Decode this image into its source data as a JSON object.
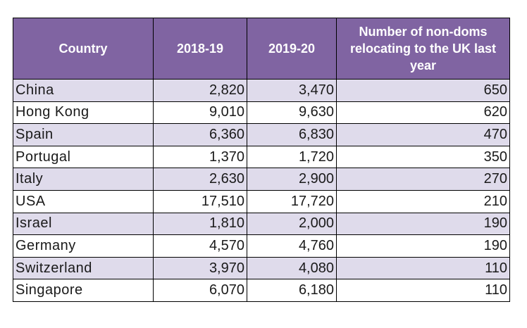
{
  "chart_data": {
    "type": "table",
    "columns": [
      "Country",
      "2018-19",
      "2019-20",
      "Number of non-doms relocating to the UK last year"
    ],
    "rows": [
      {
        "country": "China",
        "y2018_19": "2,820",
        "y2019_20": "3,470",
        "relocating": "650"
      },
      {
        "country": "Hong Kong",
        "y2018_19": "9,010",
        "y2019_20": "9,630",
        "relocating": "620"
      },
      {
        "country": "Spain",
        "y2018_19": "6,360",
        "y2019_20": "6,830",
        "relocating": "470"
      },
      {
        "country": "Portugal",
        "y2018_19": "1,370",
        "y2019_20": "1,720",
        "relocating": "350"
      },
      {
        "country": "Italy",
        "y2018_19": "2,630",
        "y2019_20": "2,900",
        "relocating": "270"
      },
      {
        "country": "USA",
        "y2018_19": "17,510",
        "y2019_20": "17,720",
        "relocating": "210"
      },
      {
        "country": "Israel",
        "y2018_19": "1,810",
        "y2019_20": "2,000",
        "relocating": "190"
      },
      {
        "country": "Germany",
        "y2018_19": "4,570",
        "y2019_20": "4,760",
        "relocating": "190"
      },
      {
        "country": "Switzerland",
        "y2018_19": "3,970",
        "y2019_20": "4,080",
        "relocating": "110"
      },
      {
        "country": "Singapore",
        "y2018_19": "6,070",
        "y2019_20": "6,180",
        "relocating": "110"
      }
    ]
  },
  "colors": {
    "header_bg": "#8064a2",
    "header_text": "#ffffff",
    "band_row": "#dfdbeb",
    "plain_row": "#ffffff",
    "border": "#000000"
  }
}
